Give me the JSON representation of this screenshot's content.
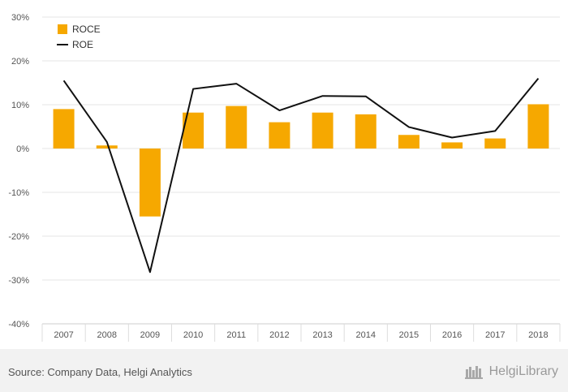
{
  "chart_data": {
    "type": "bar",
    "categories": [
      "2007",
      "2008",
      "2009",
      "2010",
      "2011",
      "2012",
      "2013",
      "2014",
      "2015",
      "2016",
      "2017",
      "2018"
    ],
    "series": [
      {
        "name": "ROCE",
        "kind": "bar",
        "color": "#f6a800",
        "values": [
          9.0,
          0.7,
          -15.5,
          8.2,
          9.7,
          6.0,
          8.2,
          7.8,
          3.1,
          1.4,
          2.3,
          10.1
        ]
      },
      {
        "name": "ROE",
        "kind": "line",
        "color": "#111111",
        "values": [
          15.5,
          1.5,
          -28.2,
          13.6,
          14.8,
          8.7,
          12.0,
          11.9,
          4.9,
          2.5,
          4.0,
          16.0
        ]
      }
    ],
    "ylim": [
      -40,
      30
    ],
    "yticks": [
      30,
      20,
      10,
      0,
      -10,
      -20,
      -30,
      -40
    ],
    "ytick_labels": [
      "30%",
      "20%",
      "10%",
      "0%",
      "-10%",
      "-20%",
      "-30%",
      "-40%"
    ],
    "grid": true,
    "legend": "top-left"
  },
  "footer": {
    "source": "Source: Company Data, Helgi Analytics",
    "brand": "HelgiLibrary"
  }
}
